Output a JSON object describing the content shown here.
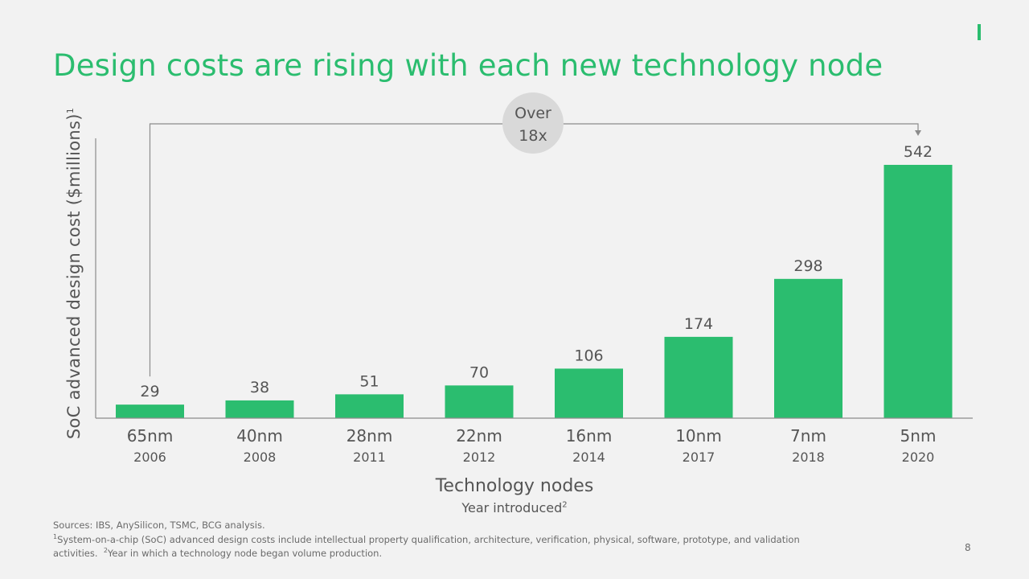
{
  "slide": {
    "title": "Design costs are rising with each new technology node",
    "page_number": "8",
    "footer": {
      "sources": "Sources: IBS, AnySilicon, TSMC, BCG analysis.",
      "note1_marker": "1",
      "note1": "System-on-a-chip (SoC) advanced design costs include intellectual property qualification, architecture, verification, physical, software, prototype, and validation activities.",
      "note2_marker": "2",
      "note2": "Year in which a technology node began volume production."
    }
  },
  "chart_data": {
    "type": "bar",
    "categories": [
      "65nm",
      "40nm",
      "28nm",
      "22nm",
      "16nm",
      "10nm",
      "7nm",
      "5nm"
    ],
    "years": [
      "2006",
      "2008",
      "2011",
      "2012",
      "2014",
      "2017",
      "2018",
      "2020"
    ],
    "values": [
      29,
      38,
      51,
      70,
      106,
      174,
      298,
      542
    ],
    "data_labels": [
      "29",
      "38",
      "51",
      "70",
      "106",
      "174",
      "298",
      "542"
    ],
    "ylabel": "SoC advanced design cost ($millions)",
    "ylabel_sup": "1",
    "xlabel": "Technology nodes",
    "xsublabel": "Year introduced",
    "xsublabel_sup": "2",
    "ylim": [
      0,
      600
    ],
    "annotation": {
      "text_line1": "Over",
      "text_line2": "18x",
      "from_category": "65nm",
      "to_category": "5nm"
    },
    "colors": {
      "bar": "#2bbd6f",
      "axis": "#8c8c8c",
      "text": "#555555",
      "bracket": "#8c8c8c",
      "callout_bg": "#d9d9d9"
    },
    "grid": false,
    "legend": "none"
  }
}
